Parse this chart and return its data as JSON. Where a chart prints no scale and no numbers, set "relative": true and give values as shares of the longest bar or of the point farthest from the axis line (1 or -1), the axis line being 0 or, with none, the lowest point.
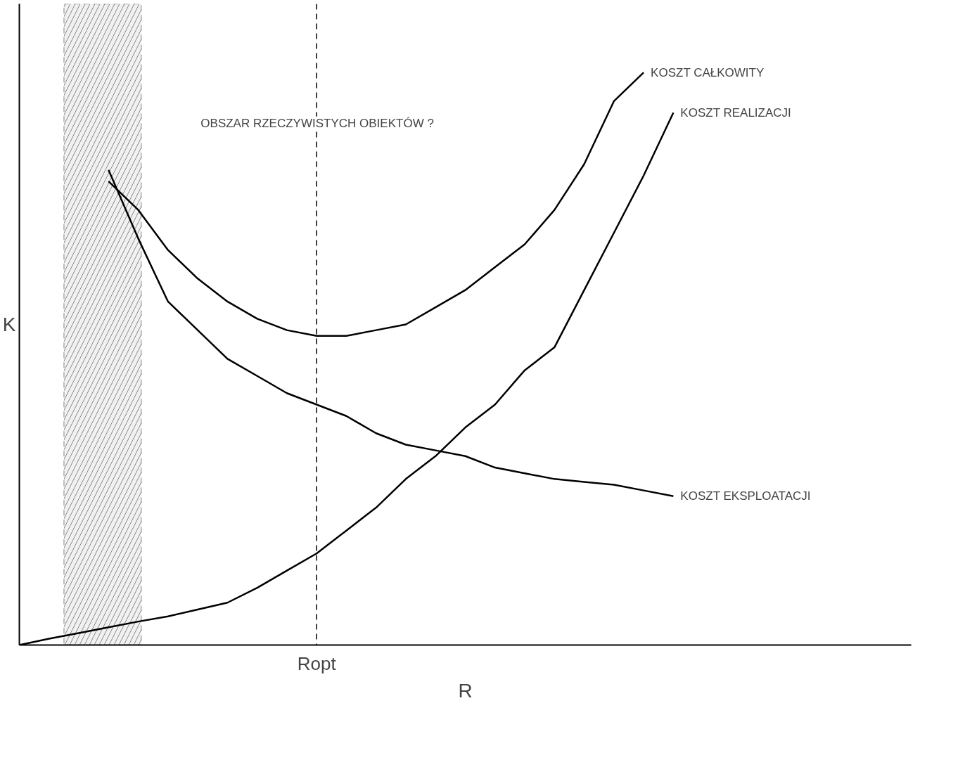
{
  "chart_data": {
    "type": "line",
    "relative": true,
    "xlabel": "R",
    "ylabel": "K",
    "tick_labels": "x",
    "legend": false,
    "marker": "none",
    "line_style": "solid",
    "categories": [
      null,
      null,
      null,
      null,
      null,
      null,
      null,
      null,
      null,
      null,
      null,
      null,
      null,
      null,
      null,
      null,
      null,
      null,
      null,
      null,
      null,
      null,
      null
    ],
    "series": [
      {
        "name": "KOSZT CAŁKOWITY",
        "color": "#000000",
        "values": [
          null,
          null,
          null,
          0.81,
          0.76,
          0.69,
          0.64,
          0.6,
          0.57,
          0.55,
          0.54,
          0.54,
          0.55,
          0.56,
          0.59,
          0.62,
          0.66,
          0.7,
          0.76,
          0.84,
          0.95,
          1,
          null
        ]
      },
      {
        "name": "KOSZT REALIZACJI",
        "color": "#000000",
        "values": [
          0,
          0.011,
          0.021,
          0.031,
          0.041,
          0.05,
          0.062,
          0.074,
          0.1,
          0.13,
          0.16,
          0.2,
          0.24,
          0.29,
          0.33,
          0.38,
          0.42,
          0.48,
          0.52,
          0.62,
          0.72,
          0.82,
          0.93
        ]
      },
      {
        "name": "KOSZT EKSPLOATACJI",
        "color": "#000000",
        "values": [
          null,
          null,
          null,
          0.83,
          0.71,
          0.6,
          0.55,
          0.5,
          0.47,
          0.44,
          0.42,
          0.4,
          0.37,
          0.35,
          0.34,
          0.33,
          0.31,
          0.3,
          0.29,
          0.285,
          0.28,
          0.27,
          0.26
        ]
      }
    ],
    "annotations": [
      "OBSZAR RZECZYWISTYCH OBIEKTÓW ?",
      "Ropt"
    ]
  }
}
